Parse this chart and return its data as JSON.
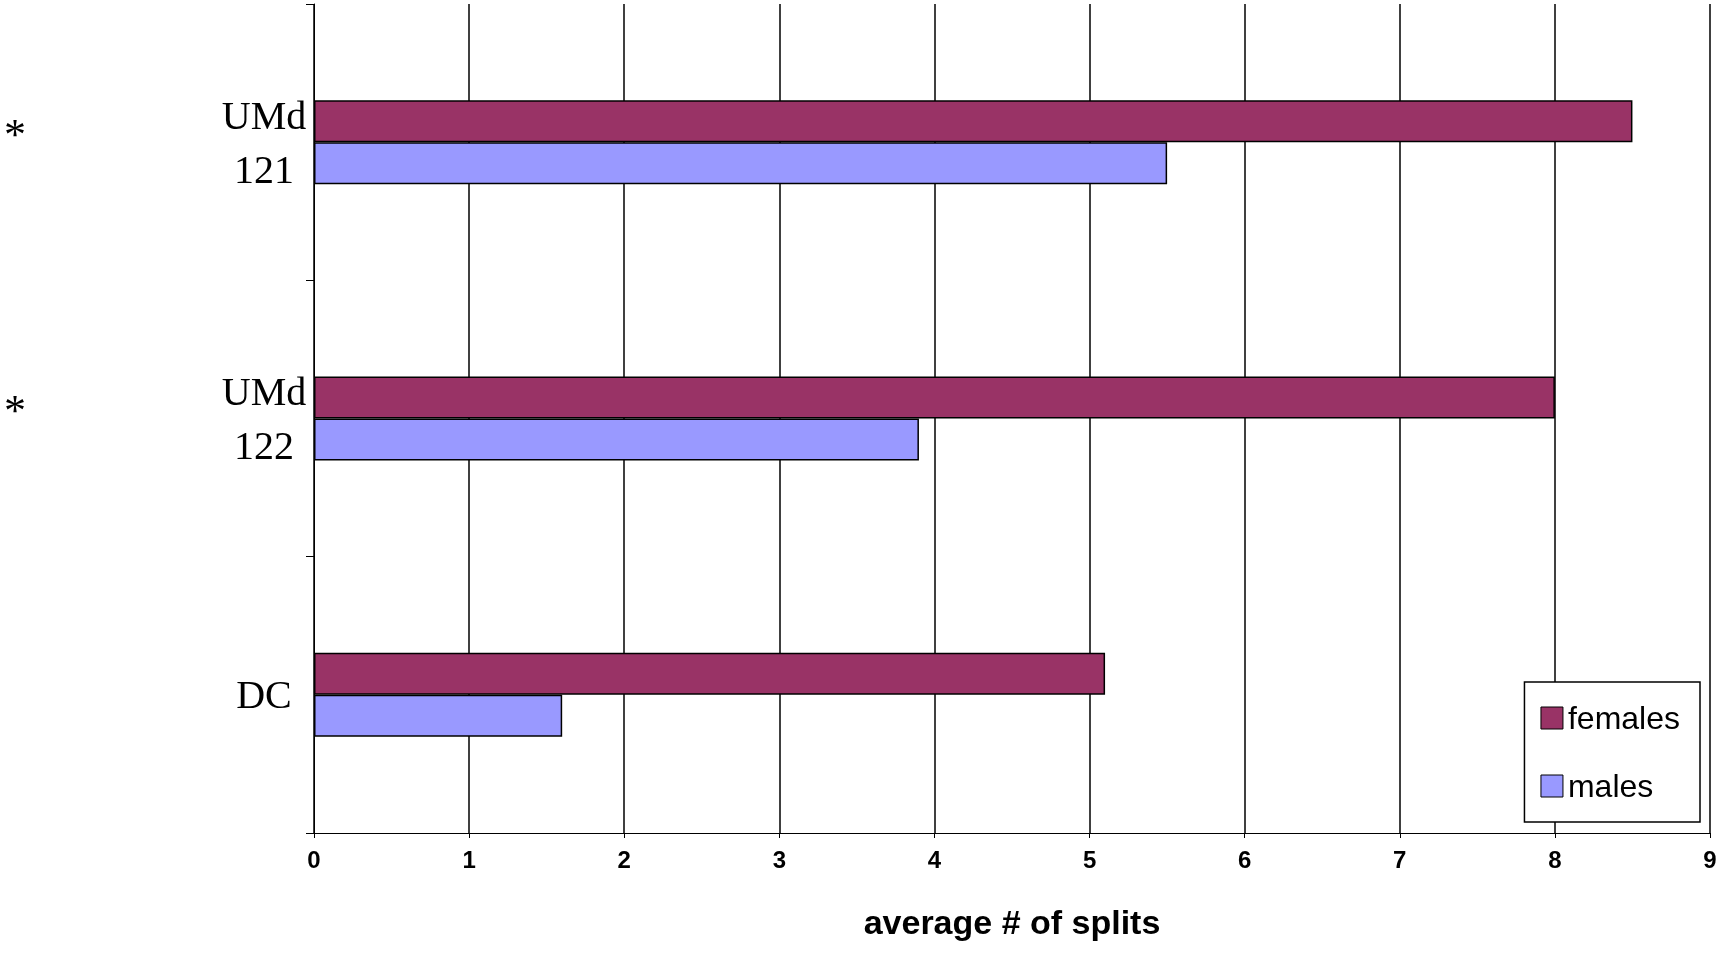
{
  "chart_data": {
    "type": "bar",
    "orientation": "horizontal",
    "xlabel": "average # of splits",
    "categories": [
      "UMd\n121",
      "UMd\n122",
      "DC"
    ],
    "series": [
      {
        "name": "females",
        "color": "#993366",
        "values": [
          8.5,
          8.0,
          5.1
        ]
      },
      {
        "name": "males",
        "color": "#9999ff",
        "values": [
          5.5,
          3.9,
          1.6
        ]
      }
    ],
    "xlim": [
      0,
      9
    ],
    "xticks": [
      0,
      1,
      2,
      3,
      4,
      5,
      6,
      7,
      8,
      9
    ],
    "grid": "x",
    "legend": "bottom right",
    "annotations": [
      "*",
      "*"
    ]
  }
}
